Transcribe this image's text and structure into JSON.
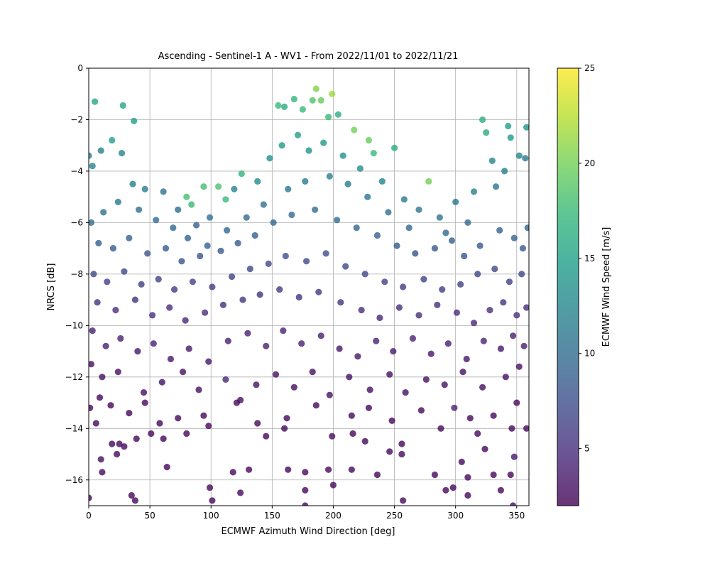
{
  "chart_data": {
    "type": "scatter",
    "title": "Ascending - Sentinel-1 A - WV1 - From 2022/11/01 to 2022/11/21",
    "xlabel": "ECMWF Azimuth Wind Direction [deg]",
    "ylabel": "NRCS [dB]",
    "xlim": [
      0,
      360
    ],
    "ylim": [
      -17,
      0
    ],
    "xticks": [
      0,
      50,
      100,
      150,
      200,
      250,
      300,
      350
    ],
    "yticks": [
      0,
      -2,
      -4,
      -6,
      -8,
      -10,
      -12,
      -14,
      -16
    ],
    "grid": true,
    "colorbar": {
      "label": "ECMWF Wind Speed [m/s]",
      "range": [
        2,
        25
      ],
      "ticks": [
        5,
        10,
        15,
        20,
        25
      ],
      "colormap": "viridis"
    },
    "colormap_stops": [
      "#440154",
      "#482878",
      "#3e4a89",
      "#31688e",
      "#26828e",
      "#1f9e89",
      "#35b779",
      "#6ece58",
      "#b5de2b",
      "#fde725"
    ],
    "marker_alpha": 0.8,
    "points": [
      [
        5,
        -1.3,
        15.5
      ],
      [
        28,
        -1.45,
        15.5
      ],
      [
        37,
        -2.05,
        14.8
      ],
      [
        19,
        -2.8,
        15.0
      ],
      [
        168,
        -1.2,
        17.0
      ],
      [
        186,
        -0.8,
        20.5
      ],
      [
        199,
        -1.0,
        21.5
      ],
      [
        190,
        -1.25,
        19.5
      ],
      [
        183,
        -1.25,
        18.5
      ],
      [
        196,
        -1.9,
        17.5
      ],
      [
        204,
        -1.8,
        16.5
      ],
      [
        160,
        -1.5,
        16.0
      ],
      [
        155,
        -1.45,
        17.5
      ],
      [
        175,
        -1.6,
        17.5
      ],
      [
        217,
        -2.4,
        20.0
      ],
      [
        229,
        -2.8,
        19.5
      ],
      [
        278,
        -4.4,
        20.0
      ],
      [
        322,
        -2.0,
        16.5
      ],
      [
        325,
        -2.5,
        16.0
      ],
      [
        343,
        -2.25,
        15.0
      ],
      [
        358,
        -2.3,
        14.0
      ],
      [
        345,
        -2.7,
        14.5
      ],
      [
        250,
        -3.1,
        16.0
      ],
      [
        233,
        -3.3,
        17.5
      ],
      [
        94,
        -4.6,
        18.0
      ],
      [
        106,
        -4.6,
        18.5
      ],
      [
        80,
        -5.0,
        18.0
      ],
      [
        84,
        -5.3,
        17.5
      ],
      [
        112,
        -5.1,
        17.5
      ],
      [
        125,
        -4.1,
        17.0
      ],
      [
        0,
        -3.4,
        12.0
      ],
      [
        3,
        -3.8,
        12.5
      ],
      [
        10,
        -3.2,
        12.0
      ],
      [
        27,
        -3.3,
        12.5
      ],
      [
        36,
        -4.5,
        12.0
      ],
      [
        46,
        -4.7,
        11.5
      ],
      [
        61,
        -4.8,
        10.5
      ],
      [
        73,
        -5.5,
        10.0
      ],
      [
        88,
        -6.1,
        9.0
      ],
      [
        99,
        -5.8,
        10.5
      ],
      [
        119,
        -4.7,
        12.5
      ],
      [
        138,
        -4.4,
        13.0
      ],
      [
        148,
        -3.5,
        13.5
      ],
      [
        158,
        -3.0,
        14.5
      ],
      [
        171,
        -2.6,
        15.0
      ],
      [
        180,
        -3.2,
        14.0
      ],
      [
        192,
        -2.9,
        14.5
      ],
      [
        208,
        -3.4,
        13.5
      ],
      [
        222,
        -3.9,
        13.0
      ],
      [
        240,
        -4.4,
        12.5
      ],
      [
        258,
        -5.1,
        11.5
      ],
      [
        270,
        -5.5,
        11.0
      ],
      [
        287,
        -5.8,
        10.5
      ],
      [
        300,
        -5.2,
        11.0
      ],
      [
        315,
        -4.8,
        12.0
      ],
      [
        330,
        -3.6,
        12.5
      ],
      [
        340,
        -4.0,
        12.0
      ],
      [
        352,
        -3.4,
        12.5
      ],
      [
        357,
        -3.5,
        11.5
      ],
      [
        333,
        -4.6,
        11.0
      ],
      [
        310,
        -6.0,
        10.0
      ],
      [
        292,
        -6.4,
        9.5
      ],
      [
        262,
        -6.2,
        9.5
      ],
      [
        245,
        -5.6,
        10.5
      ],
      [
        228,
        -5.0,
        11.0
      ],
      [
        212,
        -4.5,
        11.5
      ],
      [
        197,
        -4.2,
        12.0
      ],
      [
        177,
        -4.4,
        11.5
      ],
      [
        163,
        -4.7,
        11.0
      ],
      [
        143,
        -5.3,
        10.5
      ],
      [
        129,
        -5.8,
        10.0
      ],
      [
        113,
        -6.3,
        9.5
      ],
      [
        97,
        -6.9,
        9.0
      ],
      [
        81,
        -6.6,
        9.0
      ],
      [
        69,
        -6.2,
        9.5
      ],
      [
        55,
        -5.9,
        10.0
      ],
      [
        41,
        -5.5,
        10.5
      ],
      [
        24,
        -5.2,
        11.0
      ],
      [
        12,
        -5.6,
        10.5
      ],
      [
        2,
        -6.0,
        10.0
      ],
      [
        8,
        -6.8,
        9.0
      ],
      [
        20,
        -7.0,
        8.5
      ],
      [
        33,
        -6.6,
        9.0
      ],
      [
        48,
        -7.2,
        8.0
      ],
      [
        63,
        -7.0,
        8.5
      ],
      [
        76,
        -7.5,
        8.0
      ],
      [
        91,
        -7.3,
        8.0
      ],
      [
        108,
        -7.1,
        8.5
      ],
      [
        122,
        -6.8,
        8.5
      ],
      [
        136,
        -6.5,
        9.0
      ],
      [
        151,
        -6.0,
        9.5
      ],
      [
        166,
        -5.7,
        10.0
      ],
      [
        185,
        -5.5,
        10.0
      ],
      [
        203,
        -5.9,
        10.0
      ],
      [
        219,
        -6.2,
        9.5
      ],
      [
        236,
        -6.5,
        9.0
      ],
      [
        252,
        -6.9,
        8.5
      ],
      [
        267,
        -7.2,
        8.0
      ],
      [
        283,
        -7.0,
        8.5
      ],
      [
        297,
        -6.7,
        9.0
      ],
      [
        307,
        -7.3,
        8.0
      ],
      [
        320,
        -6.9,
        8.5
      ],
      [
        336,
        -6.3,
        9.0
      ],
      [
        348,
        -6.6,
        9.0
      ],
      [
        355,
        -7.0,
        8.5
      ],
      [
        359,
        -6.2,
        9.5
      ],
      [
        4,
        -8.0,
        7.0
      ],
      [
        15,
        -8.3,
        6.5
      ],
      [
        29,
        -7.9,
        7.0
      ],
      [
        43,
        -8.4,
        6.5
      ],
      [
        57,
        -8.2,
        6.5
      ],
      [
        70,
        -8.6,
        6.0
      ],
      [
        85,
        -8.3,
        6.5
      ],
      [
        101,
        -8.5,
        6.0
      ],
      [
        117,
        -8.1,
        6.5
      ],
      [
        132,
        -7.8,
        7.0
      ],
      [
        147,
        -7.6,
        7.0
      ],
      [
        161,
        -7.3,
        7.5
      ],
      [
        178,
        -7.5,
        7.0
      ],
      [
        194,
        -7.2,
        7.5
      ],
      [
        210,
        -7.7,
        7.0
      ],
      [
        226,
        -8.0,
        7.0
      ],
      [
        242,
        -8.3,
        6.5
      ],
      [
        257,
        -8.5,
        6.0
      ],
      [
        274,
        -8.2,
        6.5
      ],
      [
        289,
        -8.6,
        6.0
      ],
      [
        304,
        -8.4,
        6.5
      ],
      [
        318,
        -8.0,
        7.0
      ],
      [
        332,
        -7.8,
        7.0
      ],
      [
        344,
        -8.3,
        6.5
      ],
      [
        354,
        -8.0,
        7.0
      ],
      [
        7,
        -9.1,
        5.5
      ],
      [
        22,
        -9.4,
        5.0
      ],
      [
        38,
        -9.0,
        5.5
      ],
      [
        52,
        -9.6,
        5.0
      ],
      [
        66,
        -9.3,
        5.0
      ],
      [
        79,
        -9.8,
        4.5
      ],
      [
        95,
        -9.5,
        5.0
      ],
      [
        110,
        -9.2,
        5.0
      ],
      [
        126,
        -9.0,
        5.5
      ],
      [
        140,
        -8.8,
        5.5
      ],
      [
        156,
        -8.6,
        6.0
      ],
      [
        172,
        -8.9,
        5.5
      ],
      [
        188,
        -8.7,
        6.0
      ],
      [
        206,
        -9.1,
        5.5
      ],
      [
        223,
        -9.4,
        5.0
      ],
      [
        238,
        -9.7,
        4.5
      ],
      [
        254,
        -9.3,
        5.0
      ],
      [
        270,
        -9.6,
        5.0
      ],
      [
        285,
        -9.2,
        5.0
      ],
      [
        301,
        -9.5,
        5.0
      ],
      [
        315,
        -9.9,
        4.5
      ],
      [
        328,
        -9.4,
        5.0
      ],
      [
        339,
        -9.1,
        5.5
      ],
      [
        350,
        -9.6,
        5.0
      ],
      [
        358,
        -9.3,
        5.0
      ],
      [
        3,
        -10.2,
        4.0
      ],
      [
        14,
        -10.8,
        4.0
      ],
      [
        26,
        -10.5,
        4.0
      ],
      [
        40,
        -11.0,
        3.5
      ],
      [
        53,
        -10.7,
        4.0
      ],
      [
        67,
        -11.3,
        3.5
      ],
      [
        82,
        -10.9,
        3.5
      ],
      [
        98,
        -11.4,
        3.5
      ],
      [
        114,
        -10.6,
        4.0
      ],
      [
        130,
        -10.3,
        4.0
      ],
      [
        145,
        -10.8,
        4.0
      ],
      [
        159,
        -10.2,
        4.0
      ],
      [
        174,
        -10.7,
        4.0
      ],
      [
        190,
        -10.4,
        4.0
      ],
      [
        205,
        -10.9,
        3.5
      ],
      [
        220,
        -11.2,
        3.5
      ],
      [
        235,
        -10.6,
        4.0
      ],
      [
        249,
        -11.0,
        3.5
      ],
      [
        265,
        -10.5,
        4.0
      ],
      [
        280,
        -11.1,
        3.5
      ],
      [
        294,
        -10.7,
        4.0
      ],
      [
        309,
        -11.3,
        3.5
      ],
      [
        323,
        -10.6,
        4.0
      ],
      [
        337,
        -10.9,
        3.5
      ],
      [
        347,
        -10.4,
        4.0
      ],
      [
        356,
        -10.8,
        4.0
      ],
      [
        2,
        -11.5,
        3.0
      ],
      [
        11,
        -12.0,
        3.0
      ],
      [
        24,
        -11.8,
        3.0
      ],
      [
        45,
        -12.6,
        3.0
      ],
      [
        60,
        -12.2,
        3.0
      ],
      [
        77,
        -11.8,
        3.0
      ],
      [
        90,
        -12.5,
        3.0
      ],
      [
        112,
        -12.1,
        4.5
      ],
      [
        124,
        -12.9,
        3.0
      ],
      [
        137,
        -12.3,
        3.0
      ],
      [
        153,
        -11.9,
        3.0
      ],
      [
        168,
        -12.4,
        3.0
      ],
      [
        183,
        -11.8,
        3.0
      ],
      [
        197,
        -12.7,
        3.0
      ],
      [
        213,
        -12.0,
        3.0
      ],
      [
        230,
        -12.5,
        3.0
      ],
      [
        246,
        -11.9,
        3.0
      ],
      [
        259,
        -12.6,
        3.0
      ],
      [
        276,
        -12.1,
        3.0
      ],
      [
        291,
        -12.3,
        3.0
      ],
      [
        306,
        -11.8,
        3.0
      ],
      [
        322,
        -12.4,
        3.0
      ],
      [
        341,
        -12.0,
        3.0
      ],
      [
        352,
        -11.6,
        3.0
      ],
      [
        1,
        -13.2,
        2.5
      ],
      [
        9,
        -12.8,
        2.5
      ],
      [
        18,
        -13.1,
        2.5
      ],
      [
        33,
        -13.4,
        2.5
      ],
      [
        46,
        -13.0,
        2.5
      ],
      [
        58,
        -13.8,
        2.5
      ],
      [
        73,
        -13.6,
        2.5
      ],
      [
        94,
        -13.5,
        2.5
      ],
      [
        121,
        -13.0,
        2.5
      ],
      [
        138,
        -13.8,
        2.5
      ],
      [
        162,
        -13.6,
        2.5
      ],
      [
        186,
        -13.1,
        2.5
      ],
      [
        215,
        -13.5,
        2.5
      ],
      [
        229,
        -13.2,
        2.5
      ],
      [
        248,
        -13.7,
        2.5
      ],
      [
        272,
        -13.3,
        2.5
      ],
      [
        299,
        -13.2,
        4.0
      ],
      [
        312,
        -13.6,
        2.5
      ],
      [
        331,
        -13.5,
        2.5
      ],
      [
        350,
        -13.0,
        2.5
      ],
      [
        6,
        -13.8,
        2.5
      ],
      [
        25,
        -14.6,
        2.5
      ],
      [
        39,
        -14.4,
        2.5
      ],
      [
        51,
        -14.2,
        2.5
      ],
      [
        61,
        -14.4,
        2.5
      ],
      [
        80,
        -14.2,
        2.5
      ],
      [
        98,
        -13.9,
        2.5
      ],
      [
        145,
        -14.3,
        2.5
      ],
      [
        160,
        -14.0,
        2.5
      ],
      [
        199,
        -14.3,
        2.5
      ],
      [
        216,
        -14.2,
        2.5
      ],
      [
        226,
        -14.5,
        2.5
      ],
      [
        256,
        -14.6,
        2.5
      ],
      [
        288,
        -14.0,
        2.5
      ],
      [
        318,
        -14.2,
        2.5
      ],
      [
        346,
        -14.0,
        2.5
      ],
      [
        358,
        -14.0,
        2.5
      ],
      [
        10,
        -15.2,
        3.0
      ],
      [
        11,
        -15.7,
        2.5
      ],
      [
        19,
        -14.6,
        2.5
      ],
      [
        23,
        -15.0,
        2.5
      ],
      [
        29,
        -14.7,
        2.5
      ],
      [
        64,
        -15.5,
        2.5
      ],
      [
        118,
        -15.7,
        2.5
      ],
      [
        131,
        -15.6,
        2.5
      ],
      [
        163,
        -15.6,
        2.5
      ],
      [
        177,
        -15.7,
        2.5
      ],
      [
        196,
        -15.6,
        2.5
      ],
      [
        215,
        -15.6,
        2.5
      ],
      [
        236,
        -15.8,
        2.5
      ],
      [
        246,
        -14.9,
        2.5
      ],
      [
        256,
        -15.0,
        2.5
      ],
      [
        283,
        -15.8,
        2.5
      ],
      [
        305,
        -15.3,
        2.5
      ],
      [
        310,
        -15.9,
        2.5
      ],
      [
        324,
        -14.8,
        2.5
      ],
      [
        331,
        -15.8,
        2.5
      ],
      [
        345,
        -15.8,
        2.5
      ],
      [
        348,
        -15.1,
        3.5
      ],
      [
        0,
        -16.7,
        2.5
      ],
      [
        35,
        -16.6,
        2.5
      ],
      [
        38,
        -16.8,
        2.5
      ],
      [
        99,
        -16.3,
        2.5
      ],
      [
        101,
        -16.8,
        2.5
      ],
      [
        124,
        -16.5,
        2.5
      ],
      [
        177,
        -16.4,
        2.5
      ],
      [
        200,
        -16.2,
        2.5
      ],
      [
        257,
        -16.8,
        2.5
      ],
      [
        292,
        -16.4,
        2.5
      ],
      [
        298,
        -16.3,
        2.5
      ],
      [
        310,
        -16.6,
        2.5
      ],
      [
        337,
        -16.4,
        2.5
      ],
      [
        347,
        -17.0,
        2.5
      ],
      [
        177,
        -17.0,
        2.5
      ]
    ]
  }
}
